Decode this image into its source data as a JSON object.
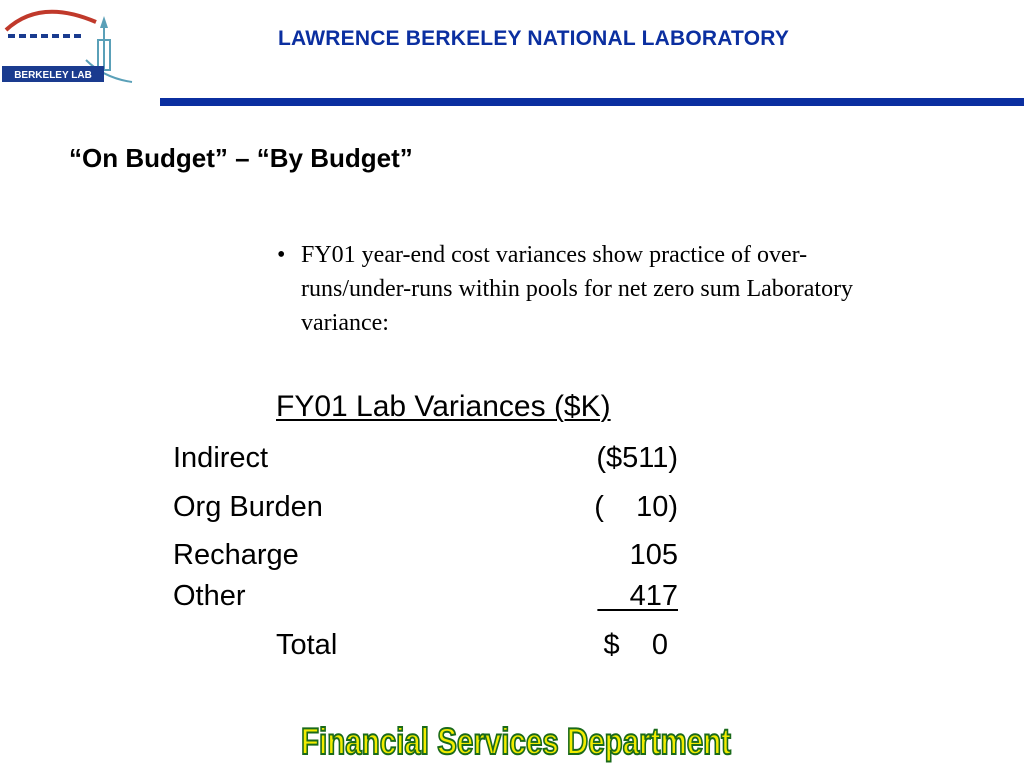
{
  "header": {
    "org_title": "LAWRENCE BERKELEY NATIONAL LABORATORY",
    "logo_text": "BERKELEY LAB"
  },
  "slide": {
    "title": "“On Budget” – “By Budget”",
    "bullet_marker": "•",
    "bullet_text": "FY01 year-end cost variances show practice of over-runs/under-runs within pools for net zero sum Laboratory variance:"
  },
  "table": {
    "title": "FY01 Lab Variances ($K)",
    "rows": [
      {
        "label": "Indirect",
        "value": "($511)"
      },
      {
        "label": "Org Burden",
        "value": "(    10)"
      },
      {
        "label": "Recharge",
        "value": "105"
      },
      {
        "label": "Other",
        "value": "    417"
      }
    ],
    "total_label": "Total",
    "total_value": "$    0"
  },
  "footer": {
    "department": "Financial Services Department",
    "colors": {
      "fill": "#f2ec00",
      "outline": "#1a6a1a"
    }
  },
  "colors": {
    "header_blue": "#0b2fa0",
    "logo_red": "#c0392b",
    "logo_teal": "#5aa0b8"
  }
}
